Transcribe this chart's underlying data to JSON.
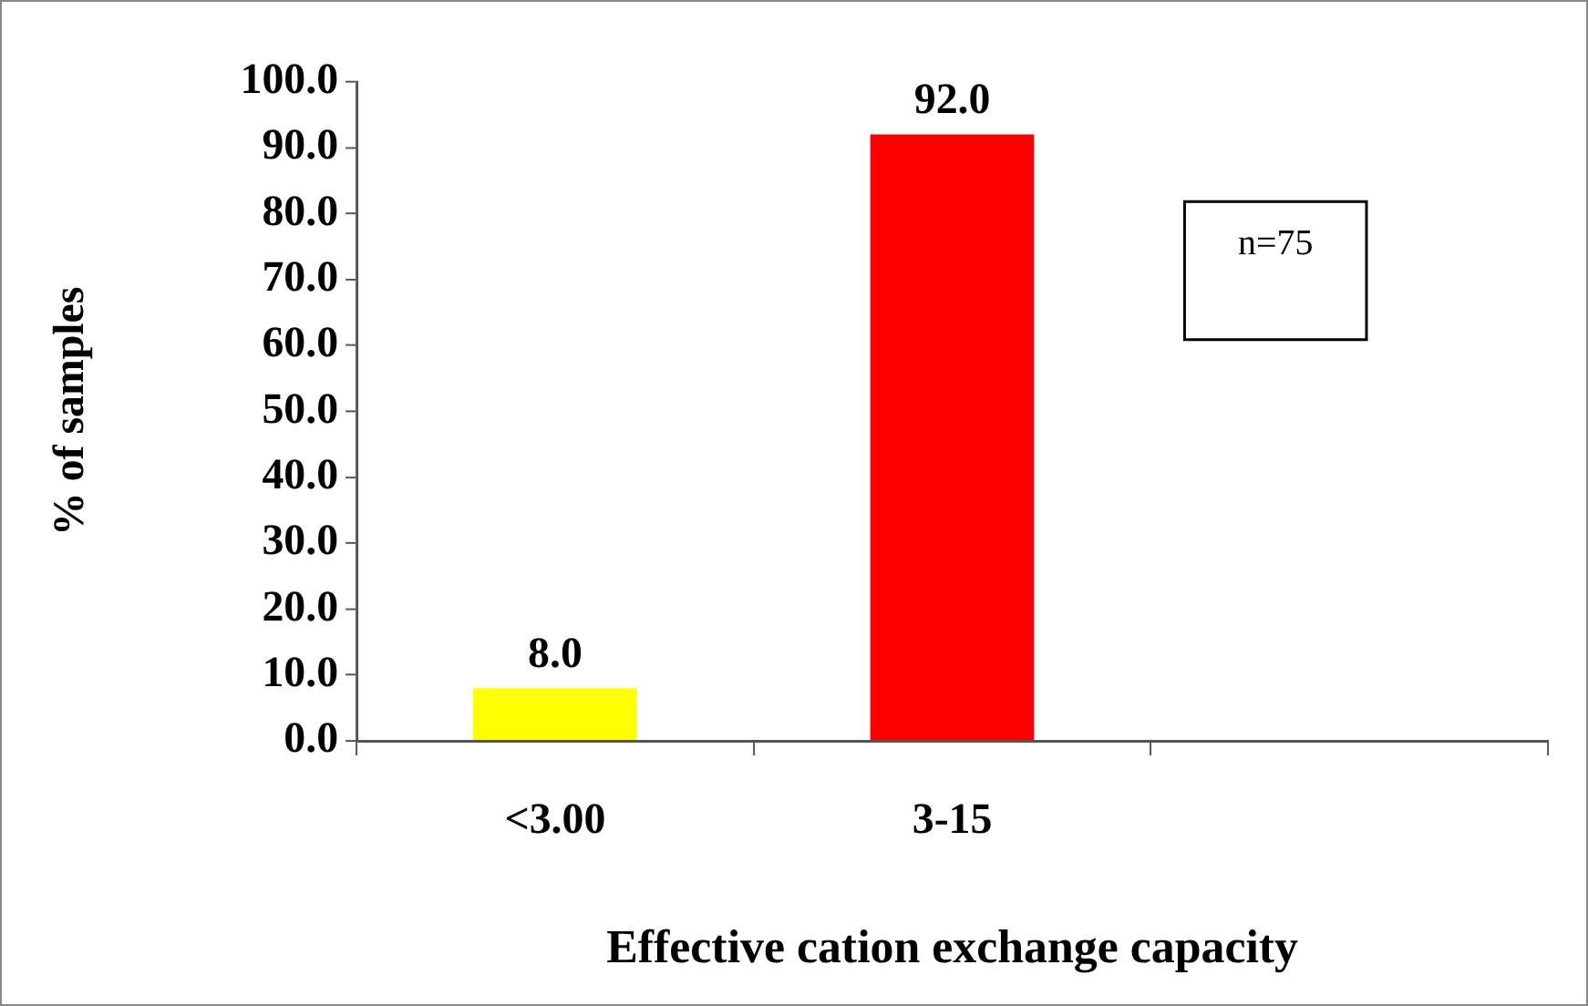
{
  "chart_data": {
    "type": "bar",
    "xlabel": "Effective cation exchange capacity",
    "ylabel": "% of samples",
    "categories": [
      "<3.00",
      "3-15",
      null
    ],
    "values": [
      8.0,
      92.0,
      null
    ],
    "colors": [
      "#ffff00",
      "#ff0000",
      null
    ],
    "value_labels": [
      "8.0",
      "92.0",
      null
    ],
    "ylim": [
      0,
      100
    ],
    "yticks": [
      {
        "value": 0,
        "label": "0.0"
      },
      {
        "value": 10,
        "label": "10.0"
      },
      {
        "value": 20,
        "label": "20.0"
      },
      {
        "value": 30,
        "label": "30.0"
      },
      {
        "value": 40,
        "label": "40.0"
      },
      {
        "value": 50,
        "label": "50.0"
      },
      {
        "value": 60,
        "label": "60.0"
      },
      {
        "value": 70,
        "label": "70.0"
      },
      {
        "value": 80,
        "label": "80.0"
      },
      {
        "value": 90,
        "label": "90.0"
      },
      {
        "value": 100,
        "label": "100.0"
      }
    ],
    "grid": false,
    "legend": false,
    "annotations": [
      "n=75"
    ]
  }
}
